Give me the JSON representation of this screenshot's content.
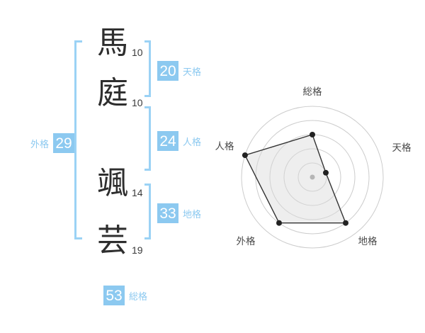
{
  "page": {
    "background": "#FFFFFF"
  },
  "name": {
    "chars": [
      {
        "char": "馬",
        "strokes": "10"
      },
      {
        "char": "庭",
        "strokes": "10"
      },
      {
        "char": "颯",
        "strokes": "14"
      },
      {
        "char": "芸",
        "strokes": "19"
      }
    ]
  },
  "kaku": {
    "tenkaku": {
      "label": "天格",
      "value": "20"
    },
    "jinkaku": {
      "label": "人格",
      "value": "24"
    },
    "chikaku": {
      "label": "地格",
      "value": "33"
    },
    "gaikaku": {
      "label": "外格",
      "value": "29"
    },
    "soukaku": {
      "label": "総格",
      "value": "53"
    }
  },
  "colors": {
    "accent_blue": "#8CC9F0",
    "bracket_blue": "#9BD2F5",
    "badge_text": "#FFFFFF",
    "kanji_text": "#2E2E2E",
    "stroke_count_text": "#3A3A3A",
    "chart_grid": "#CCCCCC",
    "chart_line": "#333333",
    "chart_dot": "#222222",
    "chart_fill": "#D9D9D9",
    "chart_center_dot": "#B5B5B5",
    "chart_label": "#4A4A4A"
  },
  "chart_data": {
    "type": "radar",
    "title": "",
    "categories": [
      "総格",
      "天格",
      "地格",
      "外格",
      "人格"
    ],
    "values": [
      60,
      20,
      80,
      80,
      100
    ],
    "max": 100,
    "rings": [
      20,
      40,
      60,
      80,
      100
    ],
    "grid": "concentric-circles",
    "legend_position": "none"
  }
}
